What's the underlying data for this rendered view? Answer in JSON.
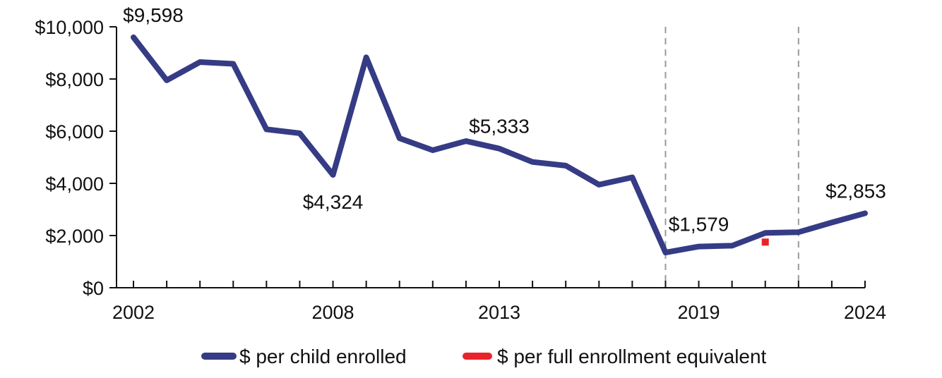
{
  "chart_data": {
    "type": "line",
    "title": "",
    "xlabel": "",
    "ylabel": "",
    "x": [
      2002,
      2003,
      2004,
      2005,
      2006,
      2007,
      2008,
      2009,
      2010,
      2011,
      2012,
      2013,
      2014,
      2015,
      2016,
      2017,
      2018,
      2019,
      2020,
      2021,
      2022,
      2023,
      2024
    ],
    "x_tick_labels": [
      "2002",
      "2008",
      "2013",
      "2019",
      "2024"
    ],
    "x_tick_values": [
      2002,
      2008,
      2013,
      2019,
      2024
    ],
    "xlim": [
      2002,
      2024
    ],
    "ylim": [
      0,
      10000
    ],
    "y_ticks": [
      0,
      2000,
      4000,
      6000,
      8000,
      10000
    ],
    "y_tick_labels": [
      "$0",
      "$2,000",
      "$4,000",
      "$6,000",
      "$8,000",
      "$10,000"
    ],
    "grid": false,
    "legend_position": "bottom",
    "colors": {
      "per_child": "#353b84",
      "per_fee": "#e8232a",
      "divider": "#9a9a9a"
    },
    "series": [
      {
        "name": "$ per child enrolled",
        "values": [
          9598,
          7950,
          8650,
          8580,
          6070,
          5920,
          4324,
          8830,
          5730,
          5270,
          5620,
          5333,
          4820,
          4680,
          3950,
          4230,
          1350,
          1579,
          1610,
          2100,
          2130,
          2500,
          2853
        ]
      },
      {
        "name": "$ per full enrollment equivalent",
        "points": [
          {
            "x": 2021,
            "y": 1750
          }
        ]
      }
    ],
    "annotations": [
      {
        "text": "$9,598",
        "x": 2002,
        "y": 9598,
        "pos": "above"
      },
      {
        "text": "$4,324",
        "x": 2008,
        "y": 4324,
        "pos": "below"
      },
      {
        "text": "$5,333",
        "x": 2013,
        "y": 5333,
        "pos": "above"
      },
      {
        "text": "$1,579",
        "x": 2019,
        "y": 1579,
        "pos": "above"
      },
      {
        "text": "$2,853",
        "x": 2024,
        "y": 2853,
        "pos": "above"
      }
    ],
    "vertical_dividers_x": [
      2018,
      2022
    ]
  }
}
